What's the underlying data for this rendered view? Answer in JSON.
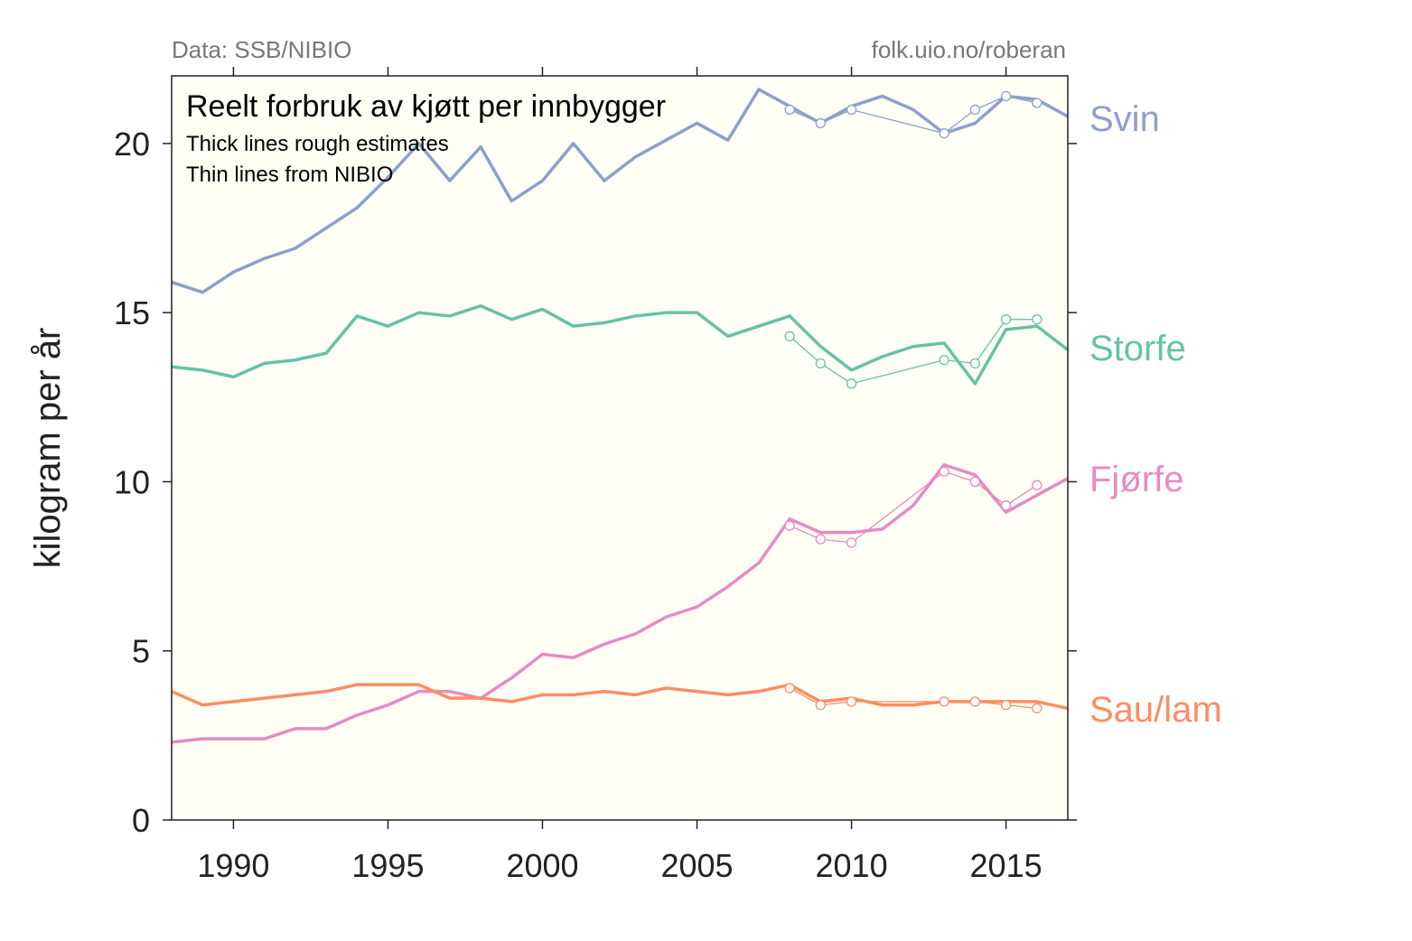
{
  "source_left": "Data: SSB/NIBIO",
  "source_right": "folk.uio.no/roberan",
  "chart_data": {
    "type": "line",
    "title": "Reelt forbruk av kjøtt per innbygger",
    "subtitle_lines": [
      "Thick lines rough estimates",
      "Thin lines from NIBIO"
    ],
    "xlabel": "",
    "ylabel": "kilogram per år",
    "xlim": [
      1988,
      2017
    ],
    "ylim": [
      0,
      22
    ],
    "x_ticks": [
      1990,
      1995,
      2000,
      2005,
      2010,
      2015
    ],
    "y_ticks": [
      0,
      5,
      10,
      15,
      20
    ],
    "background_color": "#fffff6",
    "grid": false,
    "legend": "direct labels on right",
    "series": [
      {
        "name": "Svin",
        "color": "#8da0cb",
        "estimate": {
          "x": [
            1988,
            1989,
            1990,
            1991,
            1992,
            1993,
            1994,
            1995,
            1996,
            1997,
            1998,
            1999,
            2000,
            2001,
            2002,
            2003,
            2004,
            2005,
            2006,
            2007,
            2008,
            2009,
            2010,
            2011,
            2012,
            2013,
            2014,
            2015,
            2016,
            2017
          ],
          "y": [
            15.9,
            15.6,
            16.2,
            16.6,
            16.9,
            17.5,
            18.1,
            19.0,
            20.0,
            18.9,
            19.9,
            18.3,
            18.9,
            20.0,
            18.9,
            19.6,
            20.1,
            20.6,
            20.1,
            21.6,
            21.1,
            20.6,
            21.1,
            21.4,
            21.0,
            20.3,
            20.6,
            21.4,
            21.3,
            20.8
          ]
        },
        "nibio": {
          "x": [
            2008,
            2009,
            2010,
            2013,
            2014,
            2015,
            2016
          ],
          "y": [
            21.0,
            20.6,
            21.0,
            20.3,
            21.0,
            21.4,
            21.2
          ]
        }
      },
      {
        "name": "Storfe",
        "color": "#66c2a5",
        "estimate": {
          "x": [
            1988,
            1989,
            1990,
            1991,
            1992,
            1993,
            1994,
            1995,
            1996,
            1997,
            1998,
            1999,
            2000,
            2001,
            2002,
            2003,
            2004,
            2005,
            2006,
            2007,
            2008,
            2009,
            2010,
            2011,
            2012,
            2013,
            2014,
            2015,
            2016,
            2017
          ],
          "y": [
            13.4,
            13.3,
            13.1,
            13.5,
            13.6,
            13.8,
            14.9,
            14.6,
            15.0,
            14.9,
            15.2,
            14.8,
            15.1,
            14.6,
            14.7,
            14.9,
            15.0,
            15.0,
            14.3,
            14.6,
            14.9,
            14.0,
            13.3,
            13.7,
            14.0,
            14.1,
            12.9,
            14.5,
            14.6,
            13.9
          ]
        },
        "nibio": {
          "x": [
            2008,
            2009,
            2010,
            2013,
            2014,
            2015,
            2016
          ],
          "y": [
            14.3,
            13.5,
            12.9,
            13.6,
            13.5,
            14.8,
            14.8
          ]
        }
      },
      {
        "name": "Fjørfe",
        "color": "#e78ac3",
        "estimate": {
          "x": [
            1988,
            1989,
            1990,
            1991,
            1992,
            1993,
            1994,
            1995,
            1996,
            1997,
            1998,
            1999,
            2000,
            2001,
            2002,
            2003,
            2004,
            2005,
            2006,
            2007,
            2008,
            2009,
            2010,
            2011,
            2012,
            2013,
            2014,
            2015,
            2016,
            2017
          ],
          "y": [
            2.3,
            2.4,
            2.4,
            2.4,
            2.7,
            2.7,
            3.1,
            3.4,
            3.8,
            3.8,
            3.6,
            4.2,
            4.9,
            4.8,
            5.2,
            5.5,
            6.0,
            6.3,
            6.9,
            7.6,
            8.9,
            8.5,
            8.5,
            8.6,
            9.3,
            10.5,
            10.2,
            9.1,
            9.6,
            10.1
          ]
        },
        "nibio": {
          "x": [
            2008,
            2009,
            2010,
            2013,
            2014,
            2015,
            2016
          ],
          "y": [
            8.7,
            8.3,
            8.2,
            10.3,
            10.0,
            9.3,
            9.9
          ]
        }
      },
      {
        "name": "Sau/lam",
        "color": "#fc8d62",
        "estimate": {
          "x": [
            1988,
            1989,
            1990,
            1991,
            1992,
            1993,
            1994,
            1995,
            1996,
            1997,
            1998,
            1999,
            2000,
            2001,
            2002,
            2003,
            2004,
            2005,
            2006,
            2007,
            2008,
            2009,
            2010,
            2011,
            2012,
            2013,
            2014,
            2015,
            2016,
            2017
          ],
          "y": [
            3.8,
            3.4,
            3.5,
            3.6,
            3.7,
            3.8,
            4.0,
            4.0,
            4.0,
            3.6,
            3.6,
            3.5,
            3.7,
            3.7,
            3.8,
            3.7,
            3.9,
            3.8,
            3.7,
            3.8,
            4.0,
            3.5,
            3.6,
            3.4,
            3.4,
            3.5,
            3.5,
            3.5,
            3.5,
            3.3
          ]
        },
        "nibio": {
          "x": [
            2008,
            2009,
            2010,
            2013,
            2014,
            2015,
            2016
          ],
          "y": [
            3.9,
            3.4,
            3.5,
            3.5,
            3.5,
            3.4,
            3.3
          ]
        }
      }
    ]
  }
}
